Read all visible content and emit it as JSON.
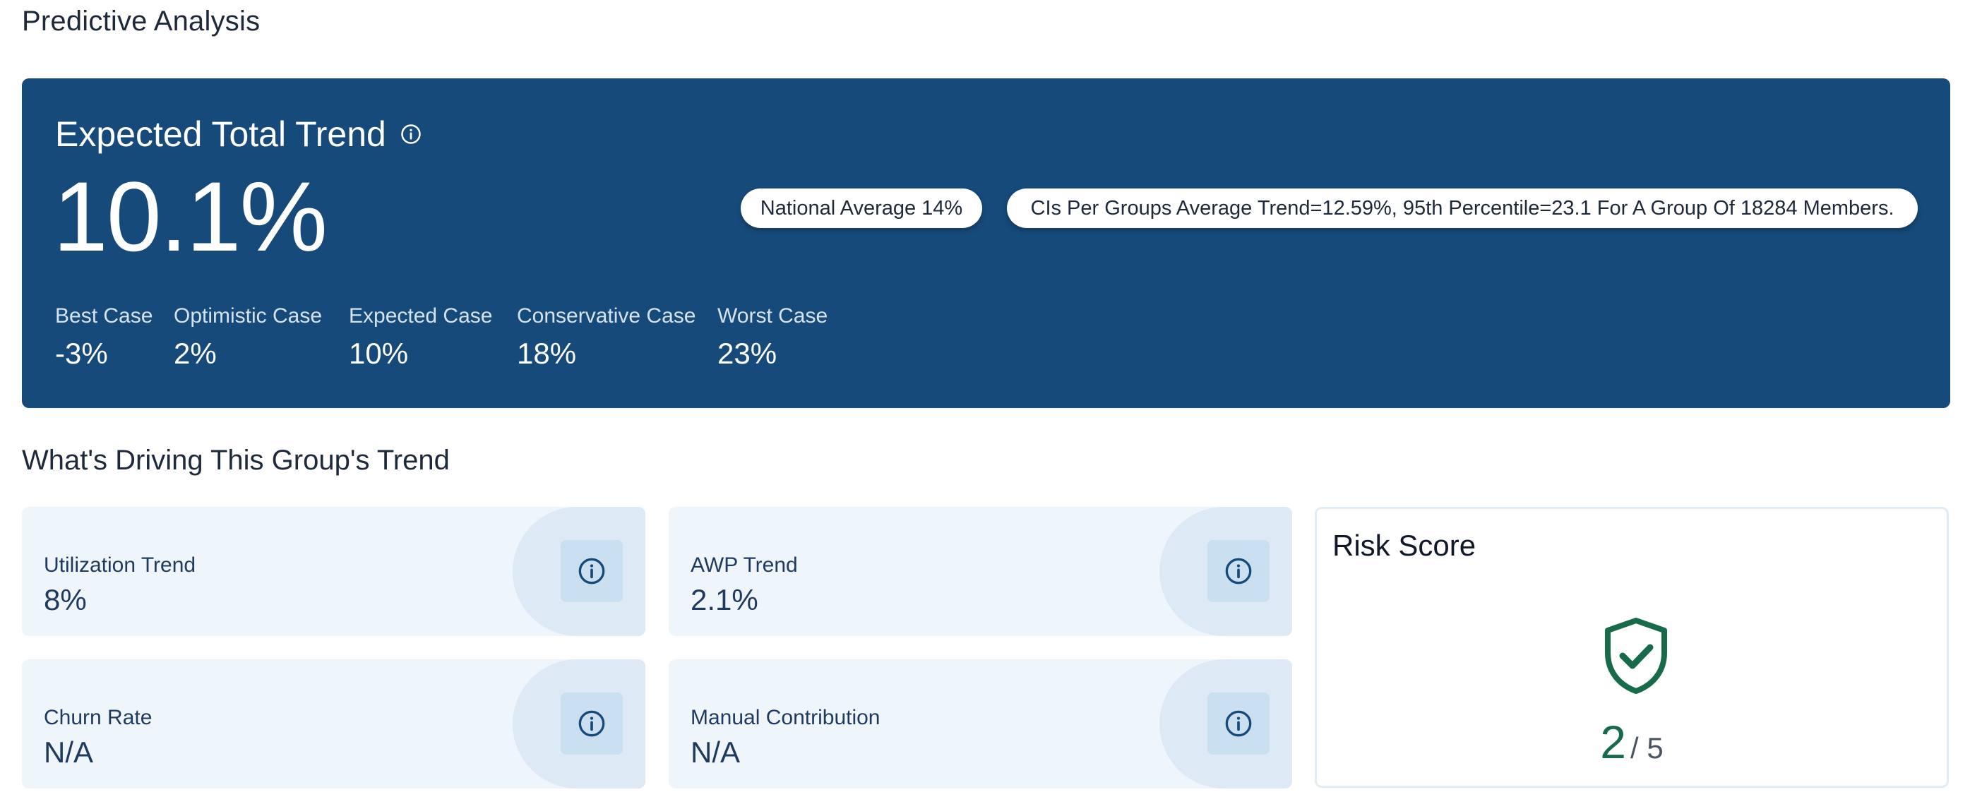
{
  "page": {
    "title": "Predictive Analysis"
  },
  "hero": {
    "title": "Expected Total Trend",
    "value": "10.1%",
    "pills": {
      "national": "National Average 14%",
      "cis": "CIs Per Groups Average Trend=12.59%, 95th Percentile=23.1 For A Group Of 18284 Members."
    },
    "cases": [
      {
        "label": "Best Case",
        "value": "-3%"
      },
      {
        "label": "Optimistic Case",
        "value": "2%"
      },
      {
        "label": "Expected Case",
        "value": "10%"
      },
      {
        "label": "Conservative Case",
        "value": "18%"
      },
      {
        "label": "Worst Case",
        "value": "23%"
      }
    ],
    "background_color": "#164a7b"
  },
  "drivers": {
    "title": "What's Driving This Group's Trend",
    "cards": [
      {
        "label": "Utilization Trend",
        "value": "8%"
      },
      {
        "label": "AWP Trend",
        "value": "2.1%"
      },
      {
        "label": "Churn Rate",
        "value": "N/A"
      },
      {
        "label": "Manual Contribution",
        "value": "N/A"
      }
    ]
  },
  "risk": {
    "title": "Risk Score",
    "score": "2",
    "max": "/ 5",
    "icon": "shield-check-icon",
    "color": "#176b4a"
  }
}
